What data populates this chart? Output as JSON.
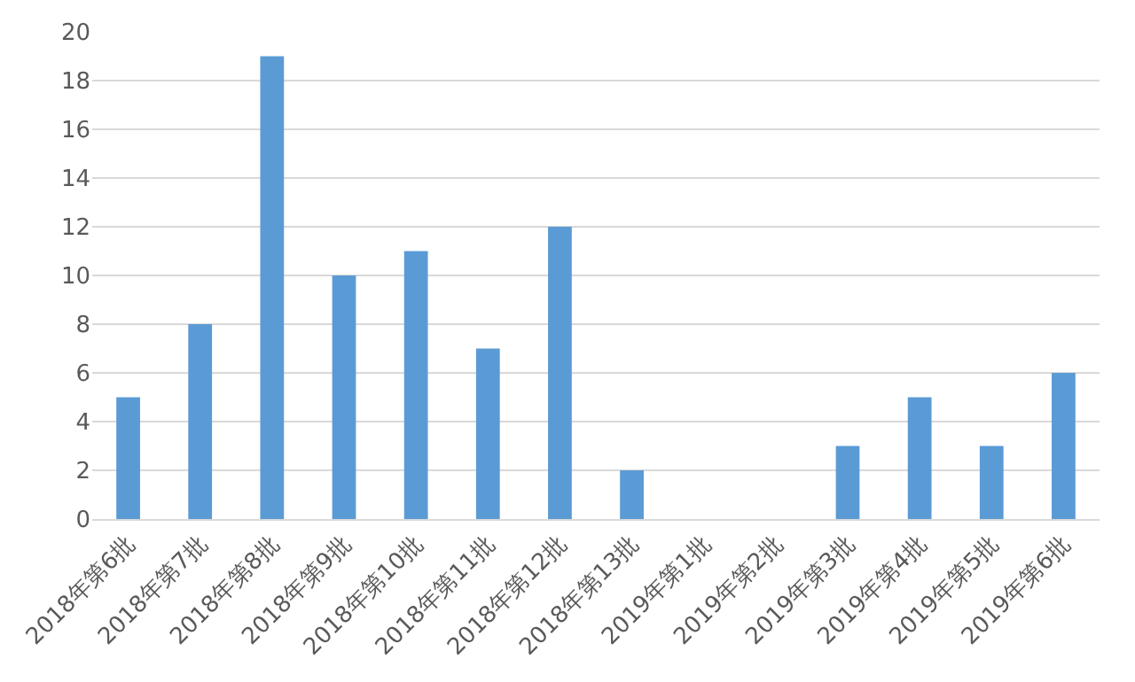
{
  "chart_data": {
    "type": "bar",
    "categories": [
      "2018年第6批",
      "2018年第7批",
      "2018年第8批",
      "2018年第9批",
      "2018年第10批",
      "2018年第11批",
      "2018年第12批",
      "2018年第13批",
      "2019年第1批",
      "2019年第2批",
      "2019年第3批",
      "2019年第4批",
      "2019年第5批",
      "2019年第6批"
    ],
    "values": [
      5,
      8,
      19,
      10,
      11,
      7,
      12,
      2,
      0,
      0,
      3,
      5,
      3,
      6
    ],
    "color": "#5b9bd5",
    "ylim": [
      0,
      20
    ],
    "yticks": [
      0,
      2,
      4,
      6,
      8,
      10,
      12,
      14,
      16,
      18,
      20
    ],
    "grid": "y",
    "legend": false
  }
}
